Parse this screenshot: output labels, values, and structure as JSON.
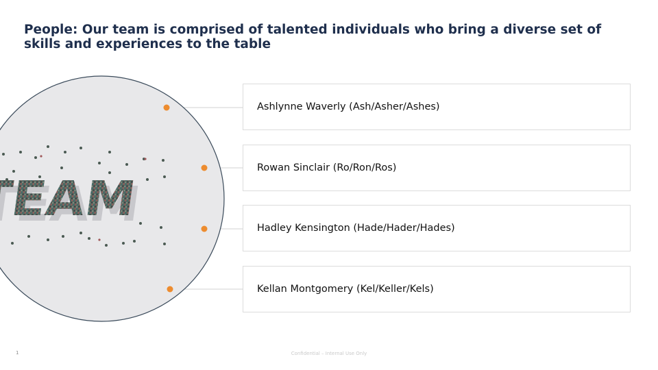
{
  "slide": {
    "title": "People: Our team is comprised of talented individuals who bring a diverse set of skills and experiences to the table",
    "image_text": "TEAM",
    "members": [
      {
        "name": "Ashlynne Waverly (Ash/Asher/Ashes)"
      },
      {
        "name": "Rowan Sinclair (Ro/Ron/Ros)"
      },
      {
        "name": "Hadley Kensington (Hade/Hader/Hades)"
      },
      {
        "name": "Kellan Montgomery (Kel/Keller/Kels)"
      }
    ],
    "colors": {
      "title": "#1f2f4d",
      "accent": "#ed8c2f",
      "circle_fill": "#e8e8ea",
      "circle_stroke": "#3a4a5a"
    },
    "footer": {
      "page_number": "1",
      "confidential": "Confidential – Internal Use Only"
    }
  }
}
